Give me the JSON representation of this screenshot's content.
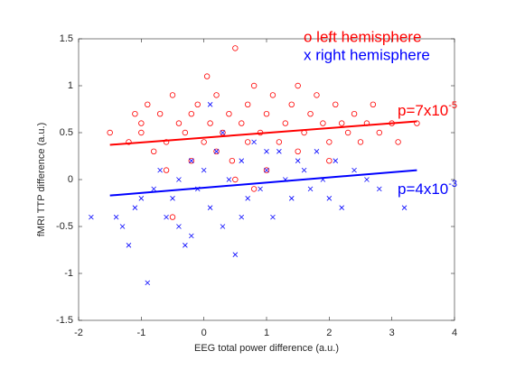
{
  "chart_data": {
    "type": "scatter",
    "xlabel": "EEG total power difference (a.u.)",
    "ylabel": "fMRI TTP difference (a.u.)",
    "xlim": [
      -2,
      4
    ],
    "xticks": [
      -2,
      -1,
      0,
      1,
      2,
      3,
      4
    ],
    "ylim": [
      -1.5,
      1.5
    ],
    "yticks": [
      -1.5,
      -1,
      -0.5,
      0,
      0.5,
      1,
      1.5
    ],
    "series": [
      {
        "name": "o left hemisphere",
        "color": "#ff0000",
        "marker": "o",
        "x": [
          -1.5,
          -1.2,
          -1.1,
          -1,
          -0.9,
          -0.8,
          -0.7,
          -0.6,
          -0.5,
          -0.4,
          -0.3,
          -0.2,
          -0.1,
          0,
          0.05,
          0.1,
          0.2,
          0.3,
          0.4,
          0.45,
          0.5,
          0.6,
          0.7,
          0.8,
          0.9,
          1,
          1.1,
          1.2,
          1.3,
          1.4,
          1.5,
          1.6,
          1.7,
          1.8,
          1.9,
          2,
          2.1,
          2.2,
          2.3,
          2.4,
          2.5,
          2.6,
          2.7,
          2.8,
          3,
          3.1,
          3.4,
          -0.5,
          0.5,
          -0.2,
          1.0,
          0.2,
          -1,
          1.5,
          0.8,
          2.0,
          -0.6,
          0.7
        ],
        "values": [
          0.5,
          0.4,
          0.7,
          0.6,
          0.8,
          0.3,
          0.7,
          0.4,
          0.9,
          0.6,
          0.5,
          0.7,
          0.8,
          0.4,
          1.1,
          0.6,
          0.9,
          0.5,
          0.7,
          0.2,
          1.4,
          0.6,
          0.8,
          1.0,
          0.5,
          0.7,
          0.9,
          0.4,
          0.6,
          0.8,
          0.3,
          0.5,
          0.7,
          0.9,
          0.6,
          0.4,
          0.8,
          0.6,
          0.5,
          0.7,
          0.4,
          0.6,
          0.8,
          0.5,
          0.6,
          0.4,
          0.6,
          -0.4,
          0.0,
          0.2,
          0.1,
          0.3,
          0.5,
          1.0,
          -0.1,
          0.2,
          0.1,
          0.4
        ]
      },
      {
        "name": "x right hemisphere",
        "color": "#0000ff",
        "marker": "x",
        "x": [
          -1.8,
          -1.4,
          -1.3,
          -1.2,
          -1.1,
          -1,
          -0.9,
          -0.8,
          -0.7,
          -0.6,
          -0.5,
          -0.4,
          -0.3,
          -0.2,
          -0.1,
          0,
          0.1,
          0.2,
          0.3,
          0.4,
          0.5,
          0.6,
          0.7,
          0.8,
          0.9,
          1,
          1.1,
          1.2,
          1.3,
          1.4,
          1.5,
          1.6,
          1.7,
          1.8,
          1.9,
          2,
          2.1,
          2.2,
          2.4,
          2.6,
          2.8,
          3.2,
          -0.2,
          0.3,
          0.1,
          -0.4,
          0.6,
          1.0
        ],
        "values": [
          -0.4,
          -0.4,
          -0.5,
          -0.7,
          -0.3,
          -0.2,
          -1.1,
          -0.1,
          0.1,
          -0.4,
          -0.2,
          0,
          -0.7,
          0.2,
          -0.1,
          0.1,
          -0.3,
          0.3,
          -0.5,
          0,
          -0.8,
          0.2,
          -0.2,
          0.4,
          -0.1,
          0.1,
          -0.4,
          0.3,
          0,
          -0.2,
          0.2,
          0.1,
          -0.1,
          0.3,
          0,
          -0.2,
          0.2,
          -0.3,
          0.1,
          0.0,
          -0.1,
          -0.3,
          -0.6,
          0.5,
          0.8,
          -0.5,
          -0.4,
          0.3
        ]
      }
    ],
    "fits": [
      {
        "color": "#ff0000",
        "x": [
          -1.5,
          3.4
        ],
        "values": [
          0.37,
          0.62
        ]
      },
      {
        "color": "#0000ff",
        "x": [
          -1.5,
          3.4
        ],
        "values": [
          -0.17,
          0.1
        ]
      }
    ],
    "annotations": [
      {
        "text": "p=7x10",
        "sup": "-5",
        "color": "#ff0000"
      },
      {
        "text": "p=4x10",
        "sup": "-3",
        "color": "#0000ff"
      }
    ]
  }
}
